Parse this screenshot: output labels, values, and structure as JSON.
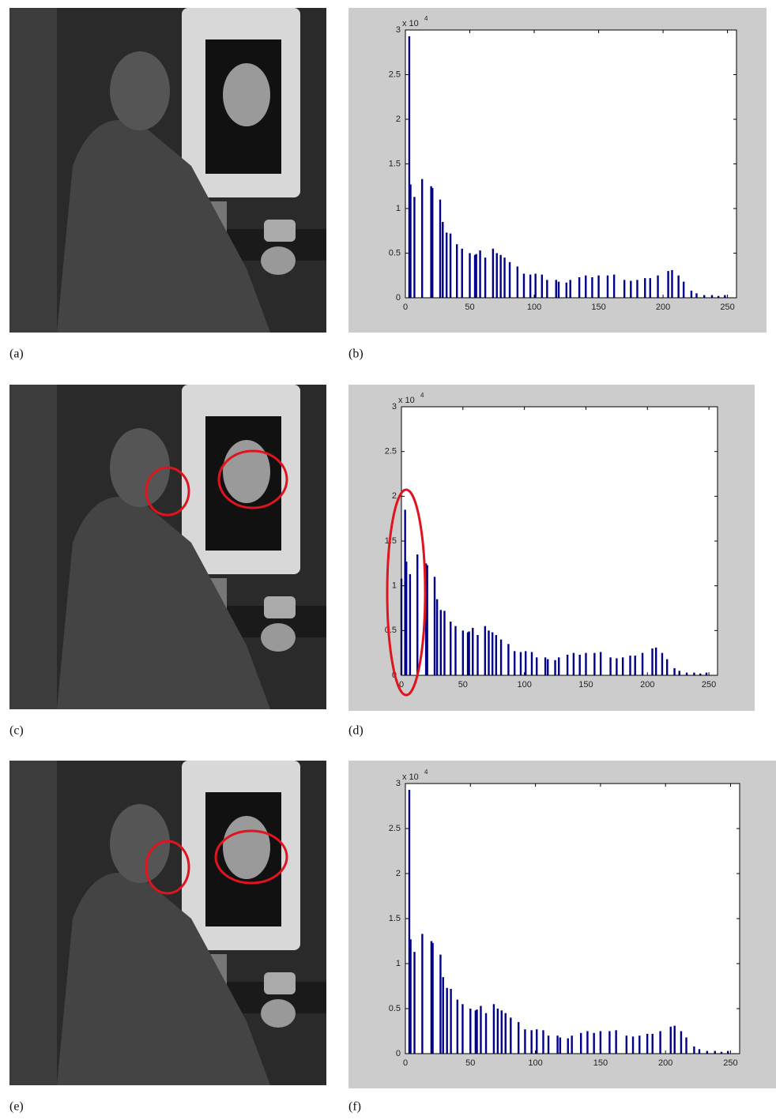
{
  "panels": [
    "(a)",
    "(b)",
    "(c)",
    "(d)",
    "(e)",
    "(f)"
  ],
  "chart_data": [
    {
      "type": "bar",
      "color": "#00008b",
      "x": [
        3,
        4,
        7,
        13,
        20,
        21,
        27,
        29,
        32,
        35,
        40,
        44,
        50,
        54,
        55,
        58,
        62,
        68,
        71,
        74,
        77,
        81,
        87,
        92,
        97,
        101,
        106,
        110,
        117,
        119,
        125,
        128,
        135,
        140,
        145,
        150,
        157,
        162,
        170,
        175,
        180,
        186,
        190,
        196,
        204,
        207,
        212,
        216,
        222,
        226,
        232,
        238,
        243,
        248
      ],
      "values": [
        2.93,
        1.27,
        1.13,
        1.33,
        1.25,
        1.23,
        1.1,
        0.85,
        0.73,
        0.72,
        0.6,
        0.55,
        0.5,
        0.48,
        0.49,
        0.53,
        0.45,
        0.55,
        0.5,
        0.48,
        0.45,
        0.4,
        0.35,
        0.27,
        0.26,
        0.27,
        0.26,
        0.2,
        0.2,
        0.18,
        0.17,
        0.2,
        0.23,
        0.25,
        0.23,
        0.25,
        0.25,
        0.26,
        0.2,
        0.19,
        0.2,
        0.22,
        0.22,
        0.25,
        0.3,
        0.31,
        0.25,
        0.18,
        0.08,
        0.05,
        0.03,
        0.03,
        0.02,
        0.03
      ],
      "xlim": [
        0,
        257
      ],
      "ylim": [
        0,
        3
      ],
      "xticks": [
        0,
        50,
        100,
        150,
        200,
        250
      ],
      "yticks": [
        0,
        0.5,
        1,
        1.5,
        2,
        2.5,
        3
      ],
      "y_scale_base": "x 10",
      "y_scale_exponent": "4"
    },
    {
      "type": "bar",
      "color": "#00008b",
      "x": [
        0,
        3,
        4,
        7,
        13,
        20,
        21,
        27,
        29,
        32,
        35,
        40,
        44,
        50,
        54,
        55,
        58,
        62,
        68,
        71,
        74,
        77,
        81,
        87,
        92,
        97,
        101,
        106,
        110,
        117,
        119,
        125,
        128,
        135,
        140,
        145,
        150,
        157,
        162,
        170,
        175,
        180,
        186,
        190,
        196,
        204,
        207,
        212,
        216,
        222,
        226,
        232,
        238,
        243,
        248
      ],
      "values": [
        1.08,
        1.85,
        1.27,
        1.13,
        1.35,
        1.25,
        1.23,
        1.1,
        0.85,
        0.73,
        0.72,
        0.6,
        0.55,
        0.5,
        0.48,
        0.49,
        0.53,
        0.45,
        0.55,
        0.5,
        0.48,
        0.45,
        0.4,
        0.35,
        0.27,
        0.26,
        0.27,
        0.26,
        0.2,
        0.2,
        0.18,
        0.17,
        0.2,
        0.23,
        0.25,
        0.23,
        0.25,
        0.25,
        0.26,
        0.2,
        0.19,
        0.2,
        0.22,
        0.22,
        0.25,
        0.3,
        0.31,
        0.25,
        0.18,
        0.08,
        0.05,
        0.03,
        0.03,
        0.02,
        0.03
      ],
      "xlim": [
        0,
        257
      ],
      "ylim": [
        0,
        3
      ],
      "xticks": [
        0,
        50,
        100,
        150,
        200,
        250
      ],
      "yticks": [
        0,
        0.5,
        1,
        1.5,
        2,
        2.5,
        3
      ],
      "y_scale_base": "x 10",
      "y_scale_exponent": "4"
    },
    {
      "type": "bar",
      "color": "#00008b",
      "x": [
        3,
        4,
        7,
        13,
        20,
        21,
        27,
        29,
        32,
        35,
        40,
        44,
        50,
        54,
        55,
        58,
        62,
        68,
        71,
        74,
        77,
        81,
        87,
        92,
        97,
        101,
        106,
        110,
        117,
        119,
        125,
        128,
        135,
        140,
        145,
        150,
        157,
        162,
        170,
        175,
        180,
        186,
        190,
        196,
        204,
        207,
        212,
        216,
        222,
        226,
        232,
        238,
        243,
        248
      ],
      "values": [
        2.93,
        1.27,
        1.13,
        1.33,
        1.25,
        1.23,
        1.1,
        0.85,
        0.73,
        0.72,
        0.6,
        0.55,
        0.5,
        0.48,
        0.49,
        0.53,
        0.45,
        0.55,
        0.5,
        0.48,
        0.45,
        0.4,
        0.35,
        0.27,
        0.26,
        0.27,
        0.26,
        0.2,
        0.2,
        0.18,
        0.17,
        0.2,
        0.23,
        0.25,
        0.23,
        0.25,
        0.25,
        0.26,
        0.2,
        0.19,
        0.2,
        0.22,
        0.22,
        0.25,
        0.3,
        0.31,
        0.25,
        0.18,
        0.08,
        0.05,
        0.03,
        0.03,
        0.02,
        0.03
      ],
      "xlim": [
        0,
        257
      ],
      "ylim": [
        0,
        3
      ],
      "xticks": [
        0,
        50,
        100,
        150,
        200,
        250
      ],
      "yticks": [
        0,
        0.5,
        1,
        1.5,
        2,
        2.5,
        3
      ],
      "y_scale_base": "x 10",
      "y_scale_exponent": "4"
    }
  ]
}
